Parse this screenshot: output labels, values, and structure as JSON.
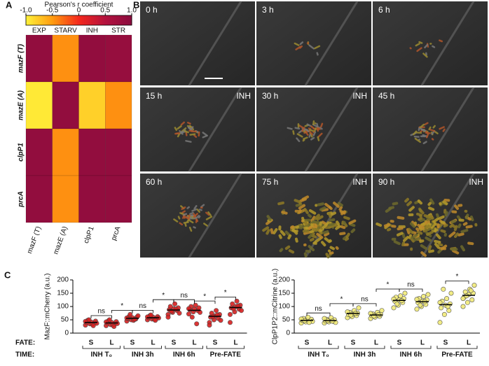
{
  "panel_labels": [
    "A",
    "B",
    "C"
  ],
  "frames": [
    {
      "time": "0 h"
    },
    {
      "time": "3 h"
    },
    {
      "time": "6 h"
    },
    {
      "time": "15 h",
      "treatment": "INH"
    },
    {
      "time": "30 h",
      "treatment": "INH"
    },
    {
      "time": "45 h"
    },
    {
      "time": "60 h"
    },
    {
      "time": "75 h",
      "treatment": "INH"
    },
    {
      "time": "90 h",
      "treatment": "INH"
    }
  ],
  "row_labels": [
    "FATE:",
    "TIME:"
  ],
  "chart_data": [
    {
      "type": "heatmap",
      "title": "Pearson's r coefficient",
      "x_categories": [
        "EXP",
        "STARV",
        "INH",
        "STR"
      ],
      "y_categories": [
        "mazF (T)",
        "mazE (A)",
        "clpP1",
        "prcA"
      ],
      "values": [
        [
          0.9,
          -0.45,
          0.9,
          0.85
        ],
        [
          -0.95,
          0.9,
          -0.8,
          -0.45
        ],
        [
          0.9,
          -0.45,
          0.9,
          0.9
        ],
        [
          0.9,
          -0.45,
          0.9,
          0.9
        ]
      ],
      "zlim": [
        -1,
        1
      ],
      "zticks": [
        {
          "value": -1,
          "label": "-1.0"
        },
        -0.5,
        0,
        0.5,
        {
          "value": 1,
          "label": "1.0"
        }
      ],
      "colorscale": [
        "#fff23a",
        "#ff9c10",
        "#f4281c",
        "#b3123e",
        "#8a0c3e"
      ]
    },
    {
      "type": "strip",
      "ylabel": "MazF::mCherry (a.u.)",
      "ylim": [
        0,
        200
      ],
      "yticks": [
        0,
        50,
        100,
        150,
        200
      ],
      "color": "#d62020",
      "times": [
        "INH T₀",
        "INH 3h",
        "INH 6h",
        "Pre-FATE"
      ],
      "groups": [
        {
          "name": "S",
          "mean": 40,
          "values": [
            30,
            35,
            38,
            40,
            42,
            45,
            48,
            33,
            37,
            50,
            28,
            44
          ]
        },
        {
          "name": "L",
          "mean": 38,
          "values": [
            28,
            32,
            35,
            38,
            40,
            43,
            46,
            30,
            36,
            50,
            25,
            42
          ]
        },
        {
          "name": "S",
          "mean": 56,
          "values": [
            45,
            50,
            53,
            55,
            58,
            60,
            62,
            48,
            65,
            70,
            52,
            57
          ]
        },
        {
          "name": "L",
          "mean": 58,
          "values": [
            50,
            53,
            55,
            58,
            60,
            62,
            65,
            52,
            57,
            68,
            48,
            61
          ]
        },
        {
          "name": "S",
          "mean": 87,
          "values": [
            70,
            78,
            85,
            88,
            92,
            95,
            100,
            110,
            75,
            82,
            90,
            60
          ]
        },
        {
          "name": "L",
          "mean": 86,
          "values": [
            72,
            80,
            85,
            88,
            90,
            95,
            100,
            105,
            78,
            60,
            35,
            92
          ]
        },
        {
          "name": "S",
          "mean": 63,
          "values": [
            40,
            50,
            55,
            60,
            65,
            70,
            75,
            85,
            48,
            62,
            68,
            30
          ]
        },
        {
          "name": "L",
          "mean": 96,
          "values": [
            70,
            80,
            90,
            95,
            100,
            105,
            110,
            120,
            85,
            92,
            102,
            40
          ]
        }
      ],
      "annotations": [
        "ns",
        "*",
        "ns",
        "*",
        "ns",
        "*",
        "*"
      ]
    },
    {
      "type": "strip",
      "ylabel": "ClpP1P2::mCitrine (a.u.)",
      "ylim": [
        0,
        200
      ],
      "yticks": [
        0,
        50,
        100,
        150,
        200
      ],
      "color": "#f1ea78",
      "times": [
        "INH T₀",
        "INH 3h",
        "INH 6h",
        "Pre-FATE"
      ],
      "groups": [
        {
          "name": "S",
          "mean": 48,
          "values": [
            38,
            42,
            45,
            48,
            50,
            52,
            55,
            60,
            44,
            47,
            40,
            53
          ]
        },
        {
          "name": "L",
          "mean": 47,
          "values": [
            38,
            42,
            44,
            46,
            48,
            50,
            52,
            58,
            40,
            47,
            45,
            55
          ]
        },
        {
          "name": "S",
          "mean": 74,
          "values": [
            58,
            62,
            66,
            70,
            72,
            75,
            78,
            85,
            95,
            68,
            74,
            80
          ]
        },
        {
          "name": "L",
          "mean": 68,
          "values": [
            55,
            60,
            63,
            66,
            68,
            70,
            72,
            78,
            85,
            64,
            69,
            74
          ]
        },
        {
          "name": "S",
          "mean": 123,
          "values": [
            95,
            105,
            115,
            120,
            125,
            130,
            135,
            140,
            150,
            110,
            122,
            128
          ]
        },
        {
          "name": "L",
          "mean": 118,
          "values": [
            90,
            100,
            108,
            115,
            120,
            125,
            130,
            138,
            145,
            105,
            118,
            127
          ]
        },
        {
          "name": "S",
          "mean": 107,
          "values": [
            40,
            70,
            85,
            95,
            105,
            110,
            120,
            130,
            150,
            165,
            100,
            115
          ]
        },
        {
          "name": "L",
          "mean": 142,
          "values": [
            100,
            115,
            125,
            135,
            145,
            150,
            155,
            165,
            180,
            140,
            160,
            130
          ]
        }
      ],
      "annotations": [
        "ns",
        "*",
        "ns",
        "*",
        "ns",
        "*"
      ]
    }
  ]
}
